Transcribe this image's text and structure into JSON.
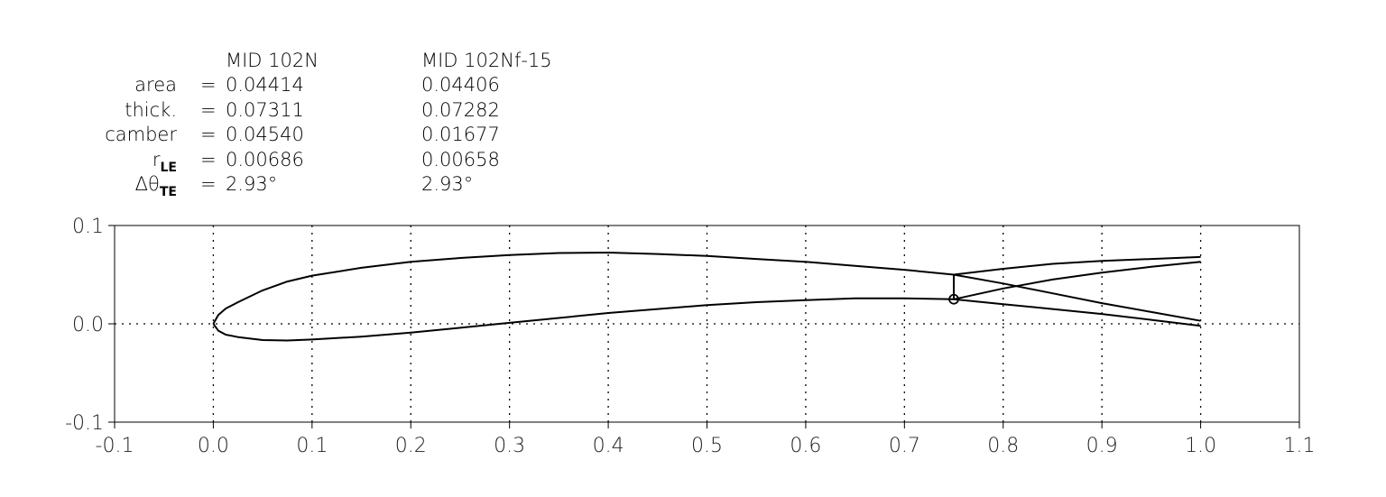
{
  "header": {
    "columns": [
      "MID 102N",
      "MID 102Nf-15"
    ],
    "rows": [
      {
        "label": "area",
        "sub": "",
        "values": [
          "0.04414",
          "0.04406"
        ]
      },
      {
        "label": "thick.",
        "sub": "",
        "values": [
          "0.07311",
          "0.07282"
        ]
      },
      {
        "label": "camber",
        "sub": "",
        "values": [
          "0.04540",
          "0.01677"
        ]
      },
      {
        "label": "r",
        "sub": "LE",
        "values": [
          "0.00686",
          "0.00658"
        ]
      },
      {
        "label": "Δθ",
        "sub": "TE",
        "values": [
          "2.93°",
          "2.93°"
        ]
      }
    ],
    "eq": "="
  },
  "chart_data": {
    "type": "line",
    "title": "",
    "xlabel": "",
    "ylabel": "",
    "xlim": [
      -0.1,
      1.1
    ],
    "ylim": [
      -0.1,
      0.1
    ],
    "xticks": [
      "-0.1",
      "0.0",
      "0.1",
      "0.2",
      "0.3",
      "0.4",
      "0.5",
      "0.6",
      "0.7",
      "0.8",
      "0.9",
      "1.0",
      "1.1"
    ],
    "yticks": [
      "-0.1",
      "0.0",
      "0.1"
    ],
    "grid": "dotted",
    "line_color": "#000000",
    "hinge": {
      "x": 0.75,
      "y": 0.025
    },
    "series": [
      {
        "part": "upper",
        "points": [
          [
            0,
            0
          ],
          [
            0.005,
            0.009
          ],
          [
            0.0125,
            0.0155
          ],
          [
            0.025,
            0.022
          ],
          [
            0.05,
            0.034
          ],
          [
            0.075,
            0.043
          ],
          [
            0.1,
            0.049
          ],
          [
            0.15,
            0.057
          ],
          [
            0.2,
            0.063
          ],
          [
            0.25,
            0.067
          ],
          [
            0.3,
            0.07
          ],
          [
            0.35,
            0.072
          ],
          [
            0.4,
            0.0725
          ],
          [
            0.45,
            0.071
          ],
          [
            0.5,
            0.069
          ],
          [
            0.55,
            0.066
          ],
          [
            0.6,
            0.063
          ],
          [
            0.65,
            0.059
          ],
          [
            0.7,
            0.055
          ],
          [
            0.75,
            0.05
          ],
          [
            0.8,
            0.041
          ],
          [
            0.85,
            0.031
          ],
          [
            0.9,
            0.021
          ],
          [
            0.95,
            0.012
          ],
          [
            1.0,
            0.003
          ]
        ]
      },
      {
        "part": "lower",
        "points": [
          [
            0,
            0
          ],
          [
            0.005,
            -0.007
          ],
          [
            0.0125,
            -0.011
          ],
          [
            0.025,
            -0.0135
          ],
          [
            0.05,
            -0.0165
          ],
          [
            0.075,
            -0.017
          ],
          [
            0.1,
            -0.016
          ],
          [
            0.15,
            -0.013
          ],
          [
            0.2,
            -0.009
          ],
          [
            0.25,
            -0.004
          ],
          [
            0.3,
            0.001
          ],
          [
            0.35,
            0.006
          ],
          [
            0.4,
            0.011
          ],
          [
            0.45,
            0.015
          ],
          [
            0.5,
            0.019
          ],
          [
            0.55,
            0.022
          ],
          [
            0.6,
            0.024
          ],
          [
            0.65,
            0.026
          ],
          [
            0.7,
            0.026
          ],
          [
            0.75,
            0.025
          ],
          [
            0.8,
            0.02
          ],
          [
            0.85,
            0.015
          ],
          [
            0.9,
            0.01
          ],
          [
            0.95,
            0.004
          ],
          [
            1.0,
            -0.002
          ]
        ]
      },
      {
        "part": "flap-upper",
        "points": [
          [
            0.75,
            0.05
          ],
          [
            0.8,
            0.056
          ],
          [
            0.85,
            0.061
          ],
          [
            0.9,
            0.064
          ],
          [
            0.95,
            0.066
          ],
          [
            1.0,
            0.068
          ]
        ]
      },
      {
        "part": "flap-lower",
        "points": [
          [
            0.75,
            0.025
          ],
          [
            0.8,
            0.036
          ],
          [
            0.85,
            0.045
          ],
          [
            0.9,
            0.052
          ],
          [
            0.95,
            0.058
          ],
          [
            1.0,
            0.063
          ]
        ]
      },
      {
        "part": "hinge-line",
        "points": [
          [
            0.75,
            0.025
          ],
          [
            0.75,
            0.05
          ]
        ]
      }
    ]
  }
}
